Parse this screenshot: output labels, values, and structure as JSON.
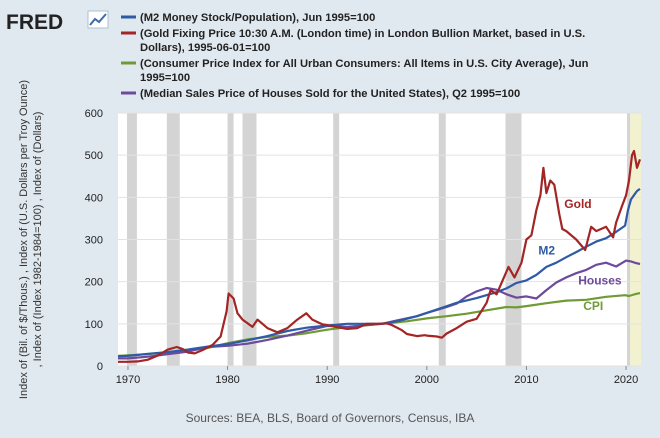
{
  "header": {
    "logo_text": "FRED",
    "logo_icon": "chart-line-icon"
  },
  "source_text": "Sources: BEA, BLS, Board of Governors, Census, IBA",
  "colors": {
    "background": "#e1e9f0",
    "recession": "#d4d4d4",
    "highlight": "#f2f2d0"
  },
  "chart_data": {
    "type": "line",
    "title": "",
    "ylabel": ", Index of (Index 1982-1984=100) , Index of (Dollars)",
    "ylabel_lines": [
      "Index of (Bil. of $/Thous.) , Index of (U.S. Dollars per Troy Ounce)",
      ", Index of (Index 1982-1984=100) , Index of (Dollars)"
    ],
    "xlim": [
      1969,
      2021.5
    ],
    "ylim": [
      0,
      600
    ],
    "x_ticks": [
      1970,
      1980,
      1990,
      2000,
      2010,
      2020
    ],
    "x_tick_labels": [
      "1970",
      "1980",
      "1990",
      "2000",
      "2010",
      "2020"
    ],
    "y_ticks": [
      0,
      100,
      200,
      300,
      400,
      500,
      600
    ],
    "y_tick_labels": [
      "0",
      "100",
      "200",
      "300",
      "400",
      "500",
      "600"
    ],
    "grid": true,
    "legend_placement": "top",
    "recessions": [
      [
        1969.9,
        1970.9
      ],
      [
        1973.9,
        1975.2
      ],
      [
        1980.0,
        1980.6
      ],
      [
        1981.5,
        1982.9
      ],
      [
        1990.6,
        1991.2
      ],
      [
        2001.2,
        2001.9
      ],
      [
        2007.9,
        2009.5
      ],
      [
        2020.1,
        2020.4
      ]
    ],
    "highlight_range": [
      2020.4,
      2021.5
    ],
    "series": [
      {
        "name": "(M2 Money Stock/Population), Jun 1995=100",
        "legend_lines": [
          "(M2 Money Stock/Population), Jun 1995=100"
        ],
        "color": "#2f5aa5",
        "annotation": "M2",
        "annotation_at": [
          2011.2,
          265
        ],
        "x": [
          1969,
          1970,
          1972,
          1974,
          1976,
          1978,
          1980,
          1982,
          1984,
          1986,
          1988,
          1990,
          1992,
          1994,
          1995.5,
          1997,
          1999,
          2001,
          2003,
          2005,
          2007,
          2008,
          2009,
          2010,
          2011,
          2012,
          2013,
          2014,
          2015,
          2016,
          2017,
          2018,
          2019,
          2019.9,
          2020.2,
          2020.5,
          2020.8,
          2021.1,
          2021.4
        ],
        "y": [
          23,
          24,
          29,
          33,
          39,
          46,
          52,
          61,
          71,
          83,
          91,
          96,
          100,
          100,
          100,
          106,
          118,
          134,
          150,
          161,
          175,
          184,
          197,
          203,
          216,
          235,
          245,
          258,
          270,
          283,
          295,
          303,
          318,
          333,
          370,
          395,
          405,
          415,
          420
        ]
      },
      {
        "name": "(Gold Fixing Price 10:30 A.M. (London time) in London Bullion Market, based in U.S. Dollars), 1995-06-01=100",
        "legend_lines": [
          "(Gold Fixing Price 10:30 A.M. (London time) in London Bullion Market, based in U.S.",
          "Dollars), 1995-06-01=100"
        ],
        "color": "#a32525",
        "annotation": "Gold",
        "annotation_at": [
          2013.8,
          375
        ],
        "x": [
          1969,
          1970,
          1971,
          1972,
          1973,
          1974,
          1974.9,
          1975.5,
          1976,
          1976.7,
          1977.5,
          1978.5,
          1979.3,
          1979.9,
          1980.1,
          1980.6,
          1981,
          1981.5,
          1982.5,
          1983,
          1984,
          1985,
          1986,
          1987,
          1987.9,
          1988.5,
          1989.5,
          1990,
          1991,
          1992,
          1993,
          1994,
          1995,
          1996,
          1996.5,
          1997.5,
          1998,
          1999,
          1999.8,
          2000,
          2001,
          2001.5,
          2002,
          2003,
          2004,
          2005,
          2006,
          2006.4,
          2007,
          2008.2,
          2008.8,
          2009.5,
          2010,
          2010.5,
          2011,
          2011.4,
          2011.7,
          2012,
          2012.4,
          2012.8,
          2013.3,
          2013.6,
          2014,
          2015,
          2015.9,
          2016.5,
          2017,
          2018,
          2018.7,
          2019,
          2019.6,
          2020,
          2020.3,
          2020.6,
          2020.8,
          2021.1,
          2021.4
        ],
        "y": [
          10,
          10,
          11,
          15,
          25,
          39,
          45,
          40,
          32,
          30,
          38,
          50,
          70,
          130,
          172,
          160,
          125,
          110,
          93,
          110,
          90,
          80,
          90,
          110,
          125,
          110,
          99,
          97,
          92,
          88,
          90,
          100,
          100,
          101,
          97,
          85,
          76,
          71,
          73,
          72,
          70,
          67,
          77,
          90,
          105,
          112,
          150,
          180,
          170,
          235,
          210,
          245,
          300,
          310,
          370,
          405,
          470,
          410,
          440,
          430,
          360,
          325,
          320,
          300,
          275,
          330,
          320,
          330,
          305,
          340,
          380,
          405,
          440,
          500,
          510,
          470,
          490
        ]
      },
      {
        "name": "(Consumer Price Index for All Urban Consumers: All Items in U.S. City Average), Jun 1995=100",
        "legend_lines": [
          "(Consumer Price Index for All Urban Consumers: All Items in U.S. City Average), Jun",
          "1995=100"
        ],
        "color": "#6f9a36",
        "annotation": "CPI",
        "annotation_at": [
          2015.7,
          133
        ],
        "x": [
          1969,
          1972,
          1975,
          1978,
          1980,
          1982,
          1984,
          1986,
          1988,
          1990,
          1992,
          1995.5,
          1998,
          2000,
          2002,
          2004,
          2006,
          2008,
          2009,
          2010,
          2012,
          2014,
          2016,
          2018,
          2019.9,
          2020.3,
          2021,
          2021.4
        ],
        "y": [
          24,
          28,
          35,
          43,
          54,
          63,
          69,
          72,
          78,
          86,
          92,
          100,
          106,
          113,
          118,
          124,
          132,
          140,
          139,
          142,
          149,
          155,
          157,
          164,
          168,
          166,
          171,
          173
        ]
      },
      {
        "name": "(Median Sales Price of Houses Sold for the United States), Q2 1995=100",
        "legend_lines": [
          "(Median Sales Price of Houses Sold for the United States), Q2 1995=100"
        ],
        "color": "#6c4a9c",
        "annotation": "Houses",
        "annotation_at": [
          2015.2,
          193
        ],
        "x": [
          1969,
          1970,
          1972,
          1974,
          1976,
          1978,
          1980,
          1982,
          1984,
          1986,
          1988,
          1990,
          1992,
          1995.5,
          1997,
          1999,
          2000,
          2001,
          2002,
          2003,
          2004,
          2005,
          2006,
          2007,
          2008,
          2009,
          2010,
          2011,
          2012,
          2013,
          2014,
          2015,
          2016,
          2017,
          2018,
          2019,
          2020,
          2020.5,
          2021,
          2021.4
        ],
        "y": [
          18,
          18,
          22,
          28,
          34,
          45,
          48,
          53,
          62,
          72,
          84,
          95,
          93,
          100,
          108,
          118,
          126,
          133,
          140,
          148,
          165,
          177,
          185,
          181,
          170,
          162,
          165,
          160,
          180,
          198,
          210,
          220,
          228,
          240,
          245,
          236,
          250,
          248,
          244,
          242
        ]
      }
    ]
  }
}
